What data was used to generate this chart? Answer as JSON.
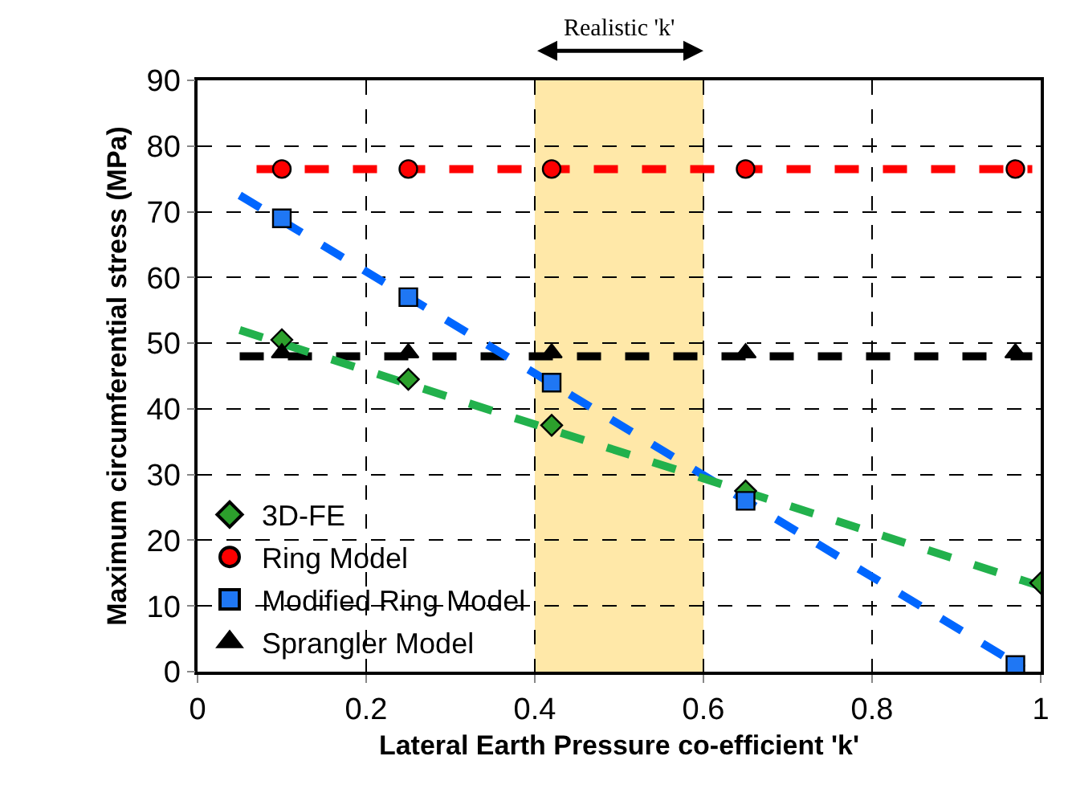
{
  "chart_data": {
    "type": "scatter",
    "xlabel": "Lateral Earth Pressure co-efficient 'k'",
    "ylabel": "Maximum circumferential stress (MPa)",
    "xlim": [
      0,
      1
    ],
    "xticks": [
      0,
      0.2,
      0.4,
      0.6,
      0.8,
      1
    ],
    "ylim": [
      0,
      90
    ],
    "yticks": [
      0,
      10,
      20,
      30,
      40,
      50,
      60,
      70,
      80,
      90
    ],
    "grid": true,
    "legend": "bottom left",
    "series": [
      {
        "name": "3D-FE",
        "marker": "diamond",
        "color": "#2ca02c",
        "x": [
          0.1,
          0.25,
          0.42,
          0.65,
          1.0
        ],
        "values": [
          50.5,
          44.5,
          37.5,
          27.5,
          13.5
        ]
      },
      {
        "name": "Ring Model",
        "marker": "circle",
        "color": "#ff0000",
        "x": [
          0.1,
          0.25,
          0.42,
          0.65,
          0.97
        ],
        "values": [
          76.5,
          76.5,
          76.5,
          76.5,
          76.5
        ]
      },
      {
        "name": "Modified Ring Model",
        "marker": "square",
        "color": "#1f77f4",
        "x": [
          0.1,
          0.25,
          0.42,
          0.65,
          0.97
        ],
        "values": [
          69,
          57,
          44,
          26,
          1
        ]
      },
      {
        "name": "Sprangler Model",
        "marker": "triangle",
        "color": "#000000",
        "x": [
          0.1,
          0.25,
          0.42,
          0.65,
          0.97
        ],
        "values": [
          48.5,
          48.5,
          48.5,
          48.5,
          48.5
        ]
      },
      {
        "type": "line",
        "line_style": "dashed",
        "color": "#ff0000",
        "x": [
          0.07,
          0.99
        ],
        "values": [
          76.5,
          76.5
        ]
      },
      {
        "type": "line",
        "line_style": "dashed",
        "color": "#000000",
        "x": [
          0.05,
          0.99
        ],
        "values": [
          48,
          48
        ]
      },
      {
        "type": "line",
        "line_style": "dashed",
        "color": "#0066ff",
        "x": [
          0.05,
          0.98
        ],
        "values": [
          72.5,
          0.5
        ]
      },
      {
        "type": "line",
        "line_style": "dashed",
        "color": "#22b14c",
        "x": [
          0.05,
          1.0
        ],
        "values": [
          52,
          13
        ]
      }
    ],
    "bands": [
      {
        "axis": "x",
        "from": 0.4,
        "to": 0.6,
        "label": "Realistic 'k'",
        "color": "#ffe8a8"
      }
    ]
  }
}
